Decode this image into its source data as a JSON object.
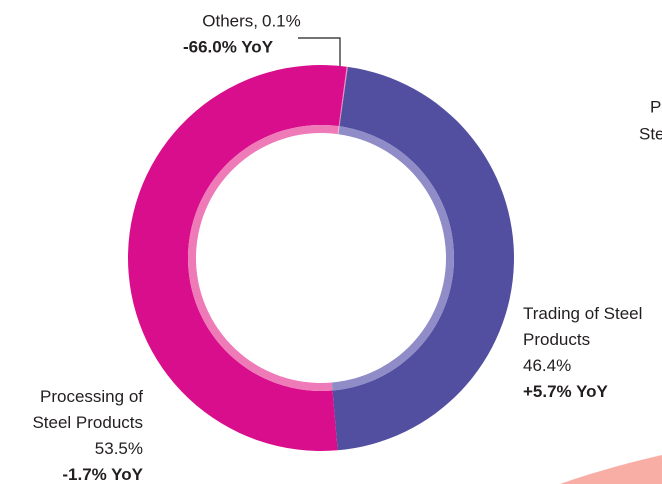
{
  "chart_data": {
    "type": "donut",
    "categories": [
      "Others,",
      "Trading of Steel Products",
      "Processing of Steel Products"
    ],
    "values": [
      0.1,
      46.4,
      53.5
    ],
    "value_labels": [
      "0.1%",
      "46.4%",
      "53.5%"
    ],
    "yoy_labels": [
      "-66.0% YoY",
      "+5.7% YoY",
      "-1.7% YoY"
    ],
    "colors": [
      "#f48fbf",
      "#524fa1",
      "#d80e8c"
    ],
    "inner_colors": [
      "#f8b9d8",
      "#8f8cc8",
      "#ef7ab8"
    ],
    "annotations": [
      "P",
      "Ste"
    ]
  }
}
